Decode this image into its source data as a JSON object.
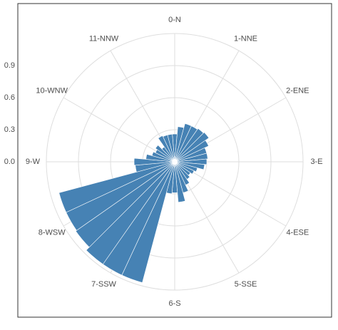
{
  "chart_data": {
    "type": "polar-bar",
    "x": [
      0,
      10,
      20,
      30,
      40,
      50,
      60,
      70,
      80,
      90,
      100,
      110,
      120,
      130,
      140,
      150,
      160,
      170,
      180,
      190,
      200,
      210,
      220,
      230,
      240,
      250,
      260,
      270,
      280,
      290,
      300,
      310,
      320,
      330,
      340,
      350
    ],
    "values": [
      0.26,
      0.33,
      0.37,
      0.37,
      0.38,
      0.39,
      0.35,
      0.31,
      0.31,
      0.3,
      0.28,
      0.22,
      0.2,
      0.18,
      0.2,
      0.24,
      0.3,
      0.38,
      0.29,
      0.3,
      1.17,
      1.17,
      1.17,
      1.13,
      1.12,
      1.12,
      0.37,
      0.38,
      0.27,
      0.22,
      0.2,
      0.22,
      0.17,
      0.27,
      0.26,
      0.26
    ],
    "color": "#4682b4",
    "xlim": [
      0,
      360
    ],
    "xticks": [
      {
        "value": 0,
        "label": "0-N"
      },
      {
        "value": 30,
        "label": "1-NNE"
      },
      {
        "value": 60,
        "label": "2-ENE"
      },
      {
        "value": 90,
        "label": "3-E"
      },
      {
        "value": 120,
        "label": "4-ESE"
      },
      {
        "value": 150,
        "label": "5-SSE"
      },
      {
        "value": 180,
        "label": "6-S"
      },
      {
        "value": 210,
        "label": "7-SSW"
      },
      {
        "value": 240,
        "label": "8-WSW"
      },
      {
        "value": 270,
        "label": "9-W"
      },
      {
        "value": 300,
        "label": "10-WNW"
      },
      {
        "value": 330,
        "label": "11-NNW"
      }
    ],
    "ylim": [
      0,
      1.2
    ],
    "yticks": [
      {
        "value": 0,
        "label": "0.0"
      },
      0.3,
      0.6,
      0.9
    ],
    "grid": true
  }
}
